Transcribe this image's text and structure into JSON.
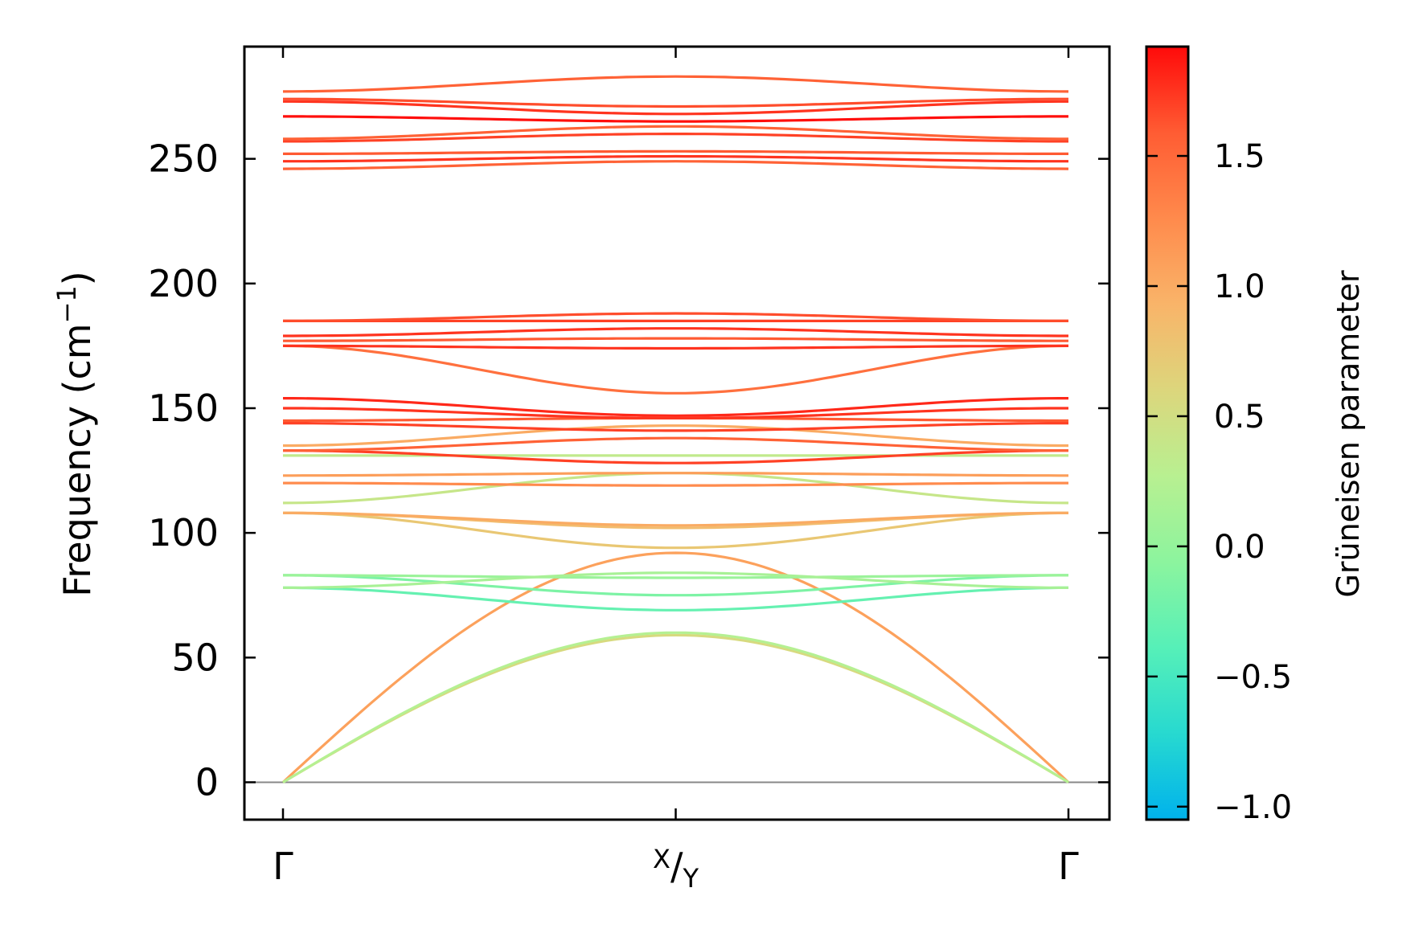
{
  "chart_data": {
    "type": "line",
    "xlabel": "",
    "ylabel": "Frequency (cm⁻¹)",
    "ylabel_base": "Frequency (cm",
    "ylabel_sup": "−1",
    "ylabel_close": ")",
    "ylim": [
      -15,
      295
    ],
    "yticks": [
      0,
      50,
      100,
      150,
      200,
      250
    ],
    "xticks": [
      {
        "pos": 0,
        "label": "Γ"
      },
      {
        "pos": 1,
        "label_sup": "X",
        "label_sep": "/",
        "label_sub": "Y"
      },
      {
        "pos": 2,
        "label": "Γ"
      }
    ],
    "zero_line": 0,
    "colorbar": {
      "label": "Grüneisen parameter",
      "range": [
        -1.05,
        1.92
      ],
      "ticks": [
        1.5,
        1.0,
        0.5,
        0.0,
        -0.5,
        -1.0
      ],
      "tick_labels": [
        "1.5",
        "1.0",
        "0.5",
        "0.0",
        "−0.5",
        "−1.0"
      ],
      "colors": [
        "#00b2ec",
        "#27d9d0",
        "#56f0b8",
        "#8cf49e",
        "#b8f091",
        "#dcd67c",
        "#f9b469",
        "#ff8a4c",
        "#ff5c33",
        "#ff0a0a"
      ]
    },
    "series": [
      {
        "gamma": 1.08,
        "values": [
          0,
          92,
          0
        ],
        "shape": "acoustic"
      },
      {
        "gamma": 0.55,
        "values": [
          0,
          59,
          0
        ],
        "shape": "acoustic"
      },
      {
        "gamma": 0.25,
        "values": [
          0,
          60,
          0
        ],
        "shape": "acoustic"
      },
      {
        "gamma": -0.3,
        "values": [
          78,
          69,
          78
        ]
      },
      {
        "gamma": -0.15,
        "values": [
          83,
          75,
          83
        ]
      },
      {
        "gamma": 0.05,
        "values": [
          83,
          82,
          83
        ]
      },
      {
        "gamma": 0.15,
        "values": [
          78,
          84,
          78
        ]
      },
      {
        "gamma": 0.75,
        "values": [
          108,
          94,
          108
        ]
      },
      {
        "gamma": 0.85,
        "values": [
          108,
          102,
          108
        ]
      },
      {
        "gamma": 1.0,
        "values": [
          108,
          103,
          108
        ]
      },
      {
        "gamma": 0.4,
        "values": [
          112,
          124,
          112
        ]
      },
      {
        "gamma": 1.25,
        "values": [
          120,
          119,
          120
        ]
      },
      {
        "gamma": 1.1,
        "values": [
          123,
          124,
          123
        ]
      },
      {
        "gamma": 0.35,
        "values": [
          131,
          131,
          131
        ]
      },
      {
        "gamma": 1.7,
        "values": [
          133,
          128,
          133
        ]
      },
      {
        "gamma": 1.55,
        "values": [
          133,
          138,
          133
        ]
      },
      {
        "gamma": 1.0,
        "values": [
          135,
          143,
          135
        ]
      },
      {
        "gamma": 1.7,
        "values": [
          144,
          141,
          144
        ]
      },
      {
        "gamma": 1.6,
        "values": [
          145,
          146,
          145
        ]
      },
      {
        "gamma": 1.75,
        "values": [
          150,
          146,
          150
        ]
      },
      {
        "gamma": 1.8,
        "values": [
          154,
          147,
          154
        ]
      },
      {
        "gamma": 1.45,
        "values": [
          175,
          156,
          175
        ]
      },
      {
        "gamma": 1.75,
        "values": [
          175,
          174,
          175
        ]
      },
      {
        "gamma": 1.6,
        "values": [
          177,
          178,
          177
        ]
      },
      {
        "gamma": 1.75,
        "values": [
          179,
          182,
          179
        ]
      },
      {
        "gamma": 1.7,
        "values": [
          185,
          185,
          185
        ]
      },
      {
        "gamma": 1.65,
        "values": [
          185,
          188,
          185
        ]
      },
      {
        "gamma": 1.55,
        "values": [
          246,
          249,
          246
        ]
      },
      {
        "gamma": 1.75,
        "values": [
          249,
          251,
          249
        ]
      },
      {
        "gamma": 1.6,
        "values": [
          252,
          253,
          252
        ]
      },
      {
        "gamma": 1.7,
        "values": [
          257,
          260,
          257
        ]
      },
      {
        "gamma": 1.55,
        "values": [
          258,
          263,
          258
        ]
      },
      {
        "gamma": 1.9,
        "values": [
          267,
          265,
          267
        ]
      },
      {
        "gamma": 1.75,
        "values": [
          273,
          268,
          273
        ]
      },
      {
        "gamma": 1.65,
        "values": [
          274,
          271,
          274
        ]
      },
      {
        "gamma": 1.55,
        "values": [
          277,
          283,
          277
        ]
      }
    ]
  }
}
